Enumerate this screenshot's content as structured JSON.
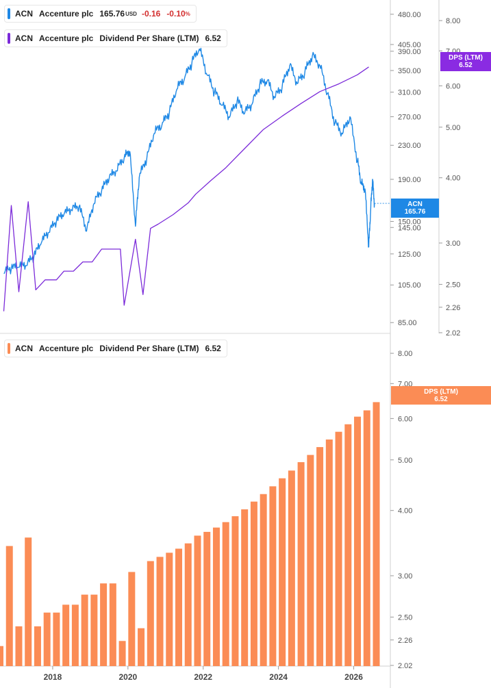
{
  "legend_price": {
    "ticker": "ACN",
    "name": "Accenture plc",
    "price": "165.76",
    "currency": "USD",
    "change": "-0.16",
    "change_pct": "-0.10",
    "pct_sign": "%"
  },
  "legend_dps_top": {
    "ticker": "ACN",
    "name": "Accenture plc",
    "metric": "Dividend Per Share (LTM)",
    "value": "6.52"
  },
  "legend_dps_bottom": {
    "ticker": "ACN",
    "name": "Accenture plc",
    "metric": "Dividend Per Share (LTM)",
    "value": "6.52"
  },
  "tags": {
    "acn": {
      "line1": "ACN",
      "line2": "165.76"
    },
    "dps_top": {
      "line1": "DPS (LTM)",
      "line2": "6.52"
    },
    "dps_bottom": {
      "line1": "DPS (LTM)",
      "line2": "6.52"
    }
  },
  "colors": {
    "price": "#1e88e5",
    "dps_line": "#7b2ad9",
    "dps_tag": "#8a2be2",
    "bars": "#fb8c55",
    "negative": "#d32f2f"
  },
  "chart_data": [
    {
      "type": "line",
      "title": "ACN Accenture plc",
      "series": [
        {
          "name": "ACN",
          "x": [
            2016.7,
            2016.9,
            2017.1,
            2017.3,
            2017.5,
            2017.7,
            2017.9,
            2018.1,
            2018.3,
            2018.5,
            2018.7,
            2018.9,
            2019.1,
            2019.3,
            2019.5,
            2019.7,
            2019.9,
            2020.05,
            2020.2,
            2020.3,
            2020.5,
            2020.7,
            2020.9,
            2021.1,
            2021.3,
            2021.5,
            2021.7,
            2021.9,
            2022.1,
            2022.3,
            2022.5,
            2022.7,
            2022.9,
            2023.1,
            2023.3,
            2023.5,
            2023.7,
            2023.9,
            2024.1,
            2024.3,
            2024.5,
            2024.7,
            2024.9,
            2025.1,
            2025.3,
            2025.5,
            2025.7,
            2025.9,
            2026.1,
            2026.2,
            2026.3,
            2026.4,
            2026.45,
            2026.5,
            2026.55
          ],
          "values": [
            112,
            115,
            116,
            117,
            123,
            133,
            141,
            150,
            156,
            160,
            163,
            142,
            166,
            178,
            191,
            199,
            214,
            222,
            146,
            192,
            213,
            246,
            257,
            276,
            315,
            334,
            365,
            395,
            342,
            310,
            288,
            269,
            295,
            275,
            290,
            323,
            330,
            300,
            320,
            360,
            325,
            346,
            380,
            360,
            308,
            260,
            245,
            270,
            210,
            185,
            180,
            130,
            160,
            190,
            166
          ]
        }
      ],
      "ylim": [
        80,
        520
      ],
      "y_scale": "log",
      "y_ticks": [
        85,
        105,
        125,
        145,
        150,
        190,
        230,
        270,
        310,
        350,
        390,
        405,
        480
      ]
    },
    {
      "type": "line",
      "title": "ACN Accenture plc Dividend Per Share (LTM)",
      "series": [
        {
          "name": "Dividend Per Share (LTM)",
          "x": [
            2016.7,
            2016.9,
            2017.1,
            2017.35,
            2017.55,
            2017.8,
            2018.1,
            2018.3,
            2018.55,
            2018.8,
            2019.05,
            2019.3,
            2019.55,
            2019.8,
            2019.9,
            2020.2,
            2020.4,
            2020.6,
            2020.8,
            2021.2,
            2021.6,
            2021.8,
            2022.2,
            2022.6,
            2023.1,
            2023.6,
            2024.1,
            2024.6,
            2025.1,
            2025.6,
            2026.1,
            2026.4
          ],
          "values": [
            2.22,
            3.54,
            2.42,
            3.6,
            2.44,
            2.55,
            2.55,
            2.65,
            2.65,
            2.76,
            2.76,
            2.92,
            2.92,
            2.92,
            2.28,
            3.05,
            2.39,
            3.2,
            3.26,
            3.4,
            3.58,
            3.72,
            3.95,
            4.18,
            4.55,
            4.95,
            5.25,
            5.55,
            5.85,
            6.05,
            6.3,
            6.52
          ]
        }
      ],
      "ylim": [
        2.02,
        8.5
      ],
      "y_scale": "log",
      "y_ticks": [
        2.02,
        2.26,
        2.5,
        3.0,
        4.0,
        5.0,
        6.0,
        7.0,
        8.0
      ]
    },
    {
      "type": "bar",
      "title": "ACN Accenture plc Dividend Per Share (LTM)",
      "categories": [
        "2016 Q3",
        "2016 Q4",
        "2017 Q1",
        "2017 Q2",
        "2017 Q3",
        "2017 Q4",
        "2018 Q1",
        "2018 Q2",
        "2018 Q3",
        "2018 Q4",
        "2019 Q1",
        "2019 Q2",
        "2019 Q3",
        "2019 Q4",
        "2020 Q1",
        "2020 Q2",
        "2020 Q3",
        "2020 Q4",
        "2021 Q1",
        "2021 Q2",
        "2021 Q3",
        "2021 Q4",
        "2022 Q1",
        "2022 Q2",
        "2022 Q3",
        "2022 Q4",
        "2023 Q1",
        "2023 Q2",
        "2023 Q3",
        "2023 Q4",
        "2024 Q1",
        "2024 Q2",
        "2024 Q3",
        "2024 Q4",
        "2025 Q1",
        "2025 Q2",
        "2025 Q3",
        "2025 Q4",
        "2026 Q1",
        "2026 Q2",
        "2026 Q3"
      ],
      "x": [
        2016.6,
        2016.85,
        2017.1,
        2017.35,
        2017.6,
        2017.85,
        2018.1,
        2018.35,
        2018.6,
        2018.85,
        2019.1,
        2019.35,
        2019.6,
        2019.85,
        2020.1,
        2020.35,
        2020.6,
        2020.85,
        2021.1,
        2021.35,
        2021.6,
        2021.85,
        2022.1,
        2022.35,
        2022.6,
        2022.85,
        2023.1,
        2023.35,
        2023.6,
        2023.85,
        2024.1,
        2024.35,
        2024.6,
        2024.85,
        2025.1,
        2025.35,
        2025.6,
        2025.85,
        2026.1,
        2026.35,
        2026.6
      ],
      "values": [
        2.2,
        3.42,
        2.4,
        3.55,
        2.4,
        2.55,
        2.55,
        2.64,
        2.64,
        2.76,
        2.76,
        2.9,
        2.9,
        2.25,
        3.05,
        2.38,
        3.2,
        3.26,
        3.32,
        3.38,
        3.46,
        3.58,
        3.64,
        3.71,
        3.8,
        3.9,
        4.02,
        4.16,
        4.3,
        4.45,
        4.61,
        4.77,
        4.95,
        5.11,
        5.29,
        5.47,
        5.66,
        5.85,
        6.05,
        6.22,
        6.45
      ],
      "ylim": [
        2.02,
        8.5
      ],
      "y_scale": "log",
      "y_ticks": [
        2.02,
        2.26,
        2.5,
        3.0,
        4.0,
        5.0,
        6.0,
        7.0,
        8.0
      ],
      "x_ticks": [
        "2018",
        "2020",
        "2022",
        "2024",
        "2026"
      ]
    }
  ]
}
